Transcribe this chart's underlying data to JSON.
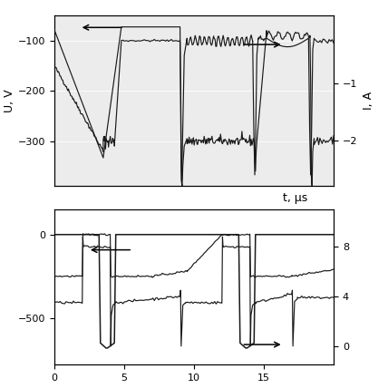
{
  "top_plot": {
    "xlim": [
      0,
      20
    ],
    "ylim_left": [
      -390,
      -50
    ],
    "ylim_right": [
      -2.8,
      0.2
    ],
    "ylabel_left": "U, V",
    "ylabel_right": "I, A",
    "yticks_left": [
      -300,
      -200,
      -100
    ],
    "yticks_right": [
      -2,
      -1
    ],
    "background": "#ececec",
    "grid_color": "#ffffff"
  },
  "bottom_plot": {
    "xlim": [
      0,
      20
    ],
    "ylim_left": [
      -780,
      150
    ],
    "ylim_right": [
      -1.5,
      11
    ],
    "yticks_left": [
      -500,
      0
    ],
    "yticks_right": [
      0,
      4,
      8
    ],
    "xticks": [
      0,
      5,
      10,
      15
    ],
    "xlabel": "t, μs",
    "background": "#ffffff",
    "grid_color": "#cccccc"
  },
  "line_color": "#1a1a1a",
  "grid_color": "#cccccc",
  "background": "#ececec"
}
